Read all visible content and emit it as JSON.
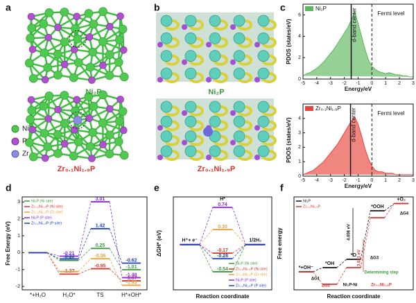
{
  "figure": {
    "panels": [
      {
        "label": "a",
        "top": "Ni₂P",
        "bottom": "Zr₀.₁Ni₁.₉P",
        "legend": [
          "Ni",
          "P",
          "Zr"
        ]
      },
      {
        "label": "b",
        "top": "Ni₂P",
        "bottom": "Zr₀.₁Ni₁.₉P"
      },
      {
        "label": "c"
      },
      {
        "label": "d"
      },
      {
        "label": "e"
      },
      {
        "label": "f"
      }
    ]
  },
  "chart_data": [
    {
      "type": "area",
      "xlabel": "Energy/eV",
      "ylabel": "PDOS (states/eV)",
      "x": [
        -5,
        -4.75,
        -4.5,
        -4.25,
        -4,
        -3.75,
        -3.5,
        -3.25,
        -3,
        -2.75,
        -2.5,
        -2.25,
        -2,
        -1.75,
        -1.5,
        -1.25,
        -1,
        -0.75,
        -0.5,
        -0.25,
        0,
        0.25,
        0.5,
        0.75,
        1,
        1.25,
        1.5,
        1.75,
        2,
        2.25,
        2.5,
        2.75,
        3
      ],
      "series": [
        {
          "name": "Ni₂P",
          "color": "#5cb85c",
          "values": [
            0.3,
            0.5,
            0.6,
            0.8,
            1.0,
            1.3,
            1.6,
            2.0,
            2.4,
            2.8,
            3.3,
            3.8,
            4.3,
            4.8,
            5.5,
            6.3,
            5.2,
            4.0,
            2.8,
            1.8,
            1.2,
            0.9,
            0.7,
            0.6,
            0.5,
            0.6,
            0.5,
            0.4,
            0.4,
            0.3,
            0.3,
            0.2,
            0.2
          ]
        }
      ],
      "xlim": [
        -5,
        3
      ],
      "xticks": [
        -5,
        -4,
        -3,
        -2,
        -1,
        0,
        1,
        2,
        3
      ],
      "ylim": [
        0,
        7
      ],
      "yticks": [
        0,
        2,
        4,
        6
      ],
      "d_band_center": -1.5,
      "d_band_label": "d-band center",
      "fermi_level": 0,
      "fermi_label": "Fermi level",
      "legend": "upper left"
    },
    {
      "type": "area",
      "xlabel": "Energy/eV",
      "ylabel": "PDOS (states/eV)",
      "x": [
        -5,
        -4.75,
        -4.5,
        -4.25,
        -4,
        -3.75,
        -3.5,
        -3.25,
        -3,
        -2.75,
        -2.5,
        -2.25,
        -2,
        -1.75,
        -1.5,
        -1.25,
        -1,
        -0.75,
        -0.5,
        -0.25,
        0,
        0.25,
        0.5,
        0.75,
        1,
        1.25,
        1.5,
        1.75,
        2,
        2.25,
        2.5,
        2.75,
        3
      ],
      "series": [
        {
          "name": "Zr₀.₁Ni₁.₉P",
          "color": "#e8453c",
          "values": [
            0.1,
            0.2,
            0.3,
            0.4,
            0.6,
            0.8,
            1.0,
            1.3,
            1.6,
            1.9,
            2.2,
            2.6,
            3.0,
            3.4,
            3.8,
            4.1,
            3.6,
            2.8,
            1.9,
            1.2,
            0.7,
            0.4,
            0.3,
            0.3,
            0.2,
            0.2,
            0.2,
            0.1,
            0.1,
            0.1,
            0.1,
            0.1,
            0.1
          ]
        }
      ],
      "xlim": [
        -5,
        3
      ],
      "xticks": [
        -5,
        -4,
        -3,
        -2,
        -1,
        0,
        1,
        2,
        3
      ],
      "ylim": [
        0,
        5
      ],
      "yticks": [
        0,
        1,
        2,
        3,
        4
      ],
      "d_band_center": -1.55,
      "d_band_label": "d-band center",
      "fermi_level": 0,
      "fermi_label": "Fermi level",
      "legend": "upper left"
    },
    {
      "type": "energy",
      "ylabel": "Free Energy (eV)",
      "categories": [
        "*+H₂O",
        "H₂O*",
        "TS",
        "H*+OH*"
      ],
      "series": [
        {
          "name": "Ni₂P (Ni site)",
          "color": "#3a9a3a",
          "values": [
            0,
            -0.46,
            0.25,
            -1.01
          ],
          "value_labels": [
            null,
            "-0.46",
            "0.25",
            "-1.01"
          ]
        },
        {
          "name": "Zr₀.₁Ni₁.₉P (Ni site)",
          "color": "#d9342b",
          "values": [
            0,
            -1.27,
            -0.95,
            -1.67
          ],
          "value_labels": [
            null,
            "-1.27",
            "-0.95",
            "-1.67"
          ]
        },
        {
          "name": "Zr₀.₁Ni₁.₉P (Zr site)",
          "color": "#e8a33d",
          "values": [
            0,
            -1.12,
            -0.36,
            -1.93
          ],
          "value_labels": [
            null,
            null,
            "-0.36",
            "-1.93"
          ]
        },
        {
          "name": "Ni₂P (P site)",
          "color": "#8a2be2",
          "values": [
            0,
            -0.21,
            3.01,
            -1.48
          ],
          "value_labels": [
            null,
            "-0.21",
            "3.01",
            "-1.48"
          ]
        },
        {
          "name": "Zr₀.₁Ni₁.₉P (P site)",
          "color": "#1f3fbf",
          "values": [
            0,
            -0.37,
            1.42,
            -0.62
          ],
          "value_labels": [
            null,
            "-0.37",
            "1.42",
            "-0.62"
          ]
        }
      ],
      "ylim": [
        -2.2,
        3.3
      ],
      "yticks": [
        -2,
        -1,
        0,
        1,
        2,
        3
      ],
      "legend": "upper left"
    },
    {
      "type": "energy",
      "ylabel": "ΔGH* (eV)",
      "xlabel": "Reaction coordinate",
      "categories": [
        "H⁺+ e⁻",
        "H*",
        "1/2H₂"
      ],
      "series": [
        {
          "name": "Ni₂P (Ni site)",
          "color": "#3a9a3a",
          "values": [
            0,
            -0.54,
            0
          ],
          "value_labels": [
            null,
            "-0.54",
            null
          ]
        },
        {
          "name": "Zr₀.₁Ni₁.₉P (Ni site)",
          "color": "#d9342b",
          "values": [
            0,
            -0.17,
            0
          ],
          "value_labels": [
            null,
            "-0.17",
            null
          ]
        },
        {
          "name": "Zr₀.₁Ni₁.₉P (Zr site)",
          "color": "#e8a33d",
          "values": [
            0,
            0.3,
            0
          ],
          "value_labels": [
            null,
            "0.30",
            null
          ]
        },
        {
          "name": "Ni₂P (P site)",
          "color": "#8a2be2",
          "values": [
            0,
            0.74,
            0
          ],
          "value_labels": [
            null,
            "0.74",
            null
          ]
        },
        {
          "name": "Zr₀.₁Ni₁.₉P (P site)",
          "color": "#1f3fbf",
          "values": [
            0,
            -0.28,
            0
          ],
          "value_labels": [
            null,
            "-0.28",
            null
          ]
        }
      ],
      "ylim": [
        -0.9,
        0.95
      ],
      "legend": "lower right"
    },
    {
      "type": "energy",
      "ylabel": "Free energy",
      "xlabel": "Reaction coordinate",
      "categories": [
        "*+OH⁻",
        "*OH",
        "*O",
        "*OOH",
        "+O₂"
      ],
      "series": [
        {
          "name": "Ni₂P",
          "color": "#111111",
          "values": [
            0,
            0.3,
            0.9,
            4.4,
            4.92
          ]
        },
        {
          "name": "Zr₀.₁Ni₁.₉P",
          "color": "#d9342b",
          "values": [
            0,
            -0.9,
            0.3,
            3.9,
            4.92
          ]
        }
      ],
      "annotations": [
        "ΔG1",
        "ΔG2",
        "ΔG3",
        "ΔG4",
        "4.008 eV",
        "3.621 eV",
        "Determining step",
        "Ni₂P-Ni",
        "Zr₀.₁Ni₁.₉P"
      ],
      "ylim": [
        -1.3,
        5.4
      ],
      "legend": "upper left"
    }
  ]
}
